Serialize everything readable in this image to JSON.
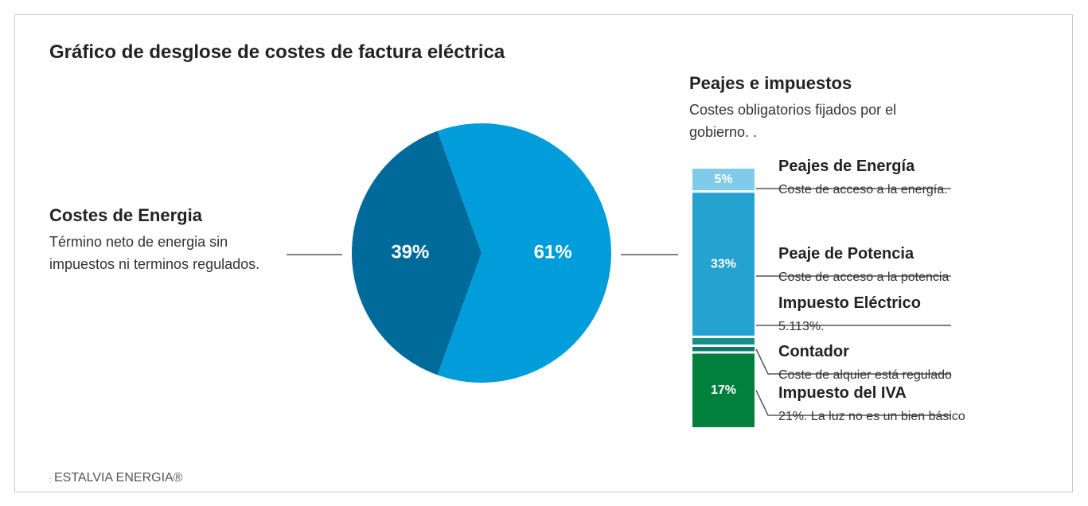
{
  "chart_data": [
    {
      "type": "pie",
      "title": "Gráfico de desglose de costes de factura eléctrica",
      "values": [
        39,
        61
      ],
      "value_labels": [
        "39%",
        "61%"
      ],
      "colors": [
        "#006a9a",
        "#009ddb"
      ],
      "annotation": {
        "title": "Costes de Energia",
        "text": "Término neto de energia sin impuestos ni terminos regulados."
      }
    },
    {
      "type": "stacked-bar",
      "title": "Peajes e impuestos",
      "subtitle": "Costes obligatorios fijados por el gobierno. .",
      "series": [
        {
          "name": "Peajes de Energía",
          "description": "Coste de acceso a la energía.",
          "color": "#7fcbe9",
          "values": [
            5
          ],
          "value_labels": [
            "5%"
          ]
        },
        {
          "name": "Peaje de Potencia",
          "description": "Coste de acceso a la potencia",
          "color": "#25a3d0",
          "values": [
            33
          ],
          "value_labels": [
            "33%"
          ]
        },
        {
          "name": "Impuesto Eléctrico",
          "description": "5.113%.",
          "color": "#168f8a",
          "values": [
            1.5
          ],
          "value_labels": [
            null
          ]
        },
        {
          "name": "Contador",
          "description": "Coste de alquier está regulado",
          "color": "#0f7a6c",
          "values": [
            1
          ],
          "value_labels": [
            null
          ]
        },
        {
          "name": "Impuesto del IVA",
          "description": "21%. La luz no es un bien básico",
          "color": "#00803c",
          "values": [
            17
          ],
          "value_labels": [
            "17%"
          ]
        }
      ]
    }
  ],
  "footer": {
    "brand": "ESTALVIA ENERGIA®"
  }
}
